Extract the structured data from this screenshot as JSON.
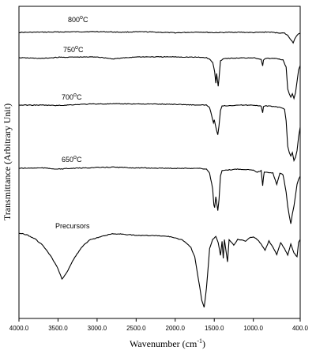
{
  "chart_data": {
    "type": "line",
    "title": "",
    "xlabel_main": "Wavenumber (cm",
    "xlabel_sup": "-1",
    "xlabel_close": ")",
    "ylabel": "Transmittance (Arbitrary Unit)",
    "xlim": [
      4000,
      400
    ],
    "x_reversed": true,
    "grid": false,
    "x_ticks": [
      "4000.0",
      "3500.0",
      "3000.0",
      "2500.0",
      "2000.0",
      "1500.0",
      "1000.0",
      "400.0"
    ],
    "x_tick_values": [
      4000,
      3500,
      3000,
      2500,
      2000,
      1500,
      1000,
      400
    ],
    "series": [
      {
        "name": "800 °C",
        "label_main": "800",
        "label_sup": "o",
        "label_unit": "C",
        "baseline": 41,
        "points": [
          [
            4000,
            0
          ],
          [
            3500,
            0.5
          ],
          [
            3000,
            1
          ],
          [
            2700,
            0.3
          ],
          [
            2400,
            0.8
          ],
          [
            2000,
            -0.5
          ],
          [
            1700,
            0.5
          ],
          [
            1500,
            -0.3
          ],
          [
            1200,
            0.3
          ],
          [
            1000,
            -0.2
          ],
          [
            800,
            0.5
          ],
          [
            700,
            -0.5
          ],
          [
            600,
            -1
          ],
          [
            560,
            -4
          ],
          [
            520,
            -9
          ],
          [
            490,
            -13
          ],
          [
            470,
            -8
          ],
          [
            450,
            -5
          ],
          [
            420,
            -2
          ],
          [
            400,
            -1
          ]
        ]
      },
      {
        "name": "750 °C",
        "label_main": "750",
        "label_sup": "o",
        "label_unit": "C",
        "baseline": 73,
        "points": [
          [
            4000,
            0
          ],
          [
            3700,
            -1
          ],
          [
            3500,
            0.5
          ],
          [
            3000,
            1
          ],
          [
            2800,
            -1.5
          ],
          [
            2500,
            1
          ],
          [
            2000,
            1
          ],
          [
            1700,
            0.5
          ],
          [
            1600,
            0
          ],
          [
            1560,
            -2
          ],
          [
            1520,
            -6
          ],
          [
            1495,
            -18
          ],
          [
            1480,
            -32
          ],
          [
            1470,
            -20
          ],
          [
            1460,
            -28
          ],
          [
            1450,
            -36
          ],
          [
            1440,
            -26
          ],
          [
            1420,
            -4
          ],
          [
            1380,
            -1
          ],
          [
            1200,
            -0.5
          ],
          [
            1000,
            0
          ],
          [
            900,
            -2
          ],
          [
            880,
            -10
          ],
          [
            870,
            -3
          ],
          [
            850,
            -1
          ],
          [
            700,
            -1
          ],
          [
            620,
            -3
          ],
          [
            580,
            -12
          ],
          [
            560,
            -40
          ],
          [
            540,
            -46
          ],
          [
            520,
            -50
          ],
          [
            500,
            -46
          ],
          [
            480,
            -52
          ],
          [
            460,
            -44
          ],
          [
            440,
            -30
          ],
          [
            420,
            -15
          ],
          [
            400,
            -10
          ]
        ]
      },
      {
        "name": "700 °C",
        "label_main": "700",
        "label_sup": "o",
        "label_unit": "C",
        "baseline": 133,
        "points": [
          [
            4000,
            0
          ],
          [
            3700,
            0
          ],
          [
            3500,
            -0.5
          ],
          [
            3200,
            1
          ],
          [
            3000,
            1.5
          ],
          [
            2500,
            1.5
          ],
          [
            2000,
            1
          ],
          [
            1700,
            0
          ],
          [
            1600,
            0
          ],
          [
            1560,
            -3
          ],
          [
            1510,
            -22
          ],
          [
            1500,
            -19
          ],
          [
            1480,
            -28
          ],
          [
            1465,
            -34
          ],
          [
            1455,
            -38
          ],
          [
            1440,
            -26
          ],
          [
            1420,
            -7
          ],
          [
            1400,
            -1
          ],
          [
            1200,
            0
          ],
          [
            1000,
            0
          ],
          [
            900,
            -1
          ],
          [
            880,
            -10
          ],
          [
            870,
            -2
          ],
          [
            850,
            -1
          ],
          [
            700,
            -2
          ],
          [
            600,
            -5
          ],
          [
            580,
            -20
          ],
          [
            560,
            -52
          ],
          [
            540,
            -60
          ],
          [
            520,
            -64
          ],
          [
            500,
            -60
          ],
          [
            480,
            -70
          ],
          [
            460,
            -66
          ],
          [
            440,
            -58
          ],
          [
            420,
            -40
          ],
          [
            400,
            -28
          ]
        ]
      },
      {
        "name": "650 °C",
        "label_main": "650",
        "label_sup": "o",
        "label_unit": "C",
        "baseline": 213,
        "points": [
          [
            4000,
            0
          ],
          [
            3700,
            0.5
          ],
          [
            3500,
            -1
          ],
          [
            3300,
            0
          ],
          [
            3000,
            1
          ],
          [
            2800,
            1.5
          ],
          [
            2500,
            0.5
          ],
          [
            2000,
            0
          ],
          [
            1700,
            0
          ],
          [
            1600,
            -1
          ],
          [
            1560,
            -6
          ],
          [
            1520,
            -26
          ],
          [
            1505,
            -46
          ],
          [
            1495,
            -50
          ],
          [
            1480,
            -36
          ],
          [
            1465,
            -46
          ],
          [
            1455,
            -54
          ],
          [
            1440,
            -40
          ],
          [
            1420,
            -10
          ],
          [
            1400,
            -3
          ],
          [
            1200,
            -1
          ],
          [
            1000,
            -2
          ],
          [
            950,
            -5
          ],
          [
            900,
            -3
          ],
          [
            880,
            -22
          ],
          [
            870,
            -12
          ],
          [
            860,
            -5
          ],
          [
            750,
            -6
          ],
          [
            700,
            -20
          ],
          [
            660,
            -6
          ],
          [
            620,
            -8
          ],
          [
            580,
            -30
          ],
          [
            560,
            -48
          ],
          [
            540,
            -60
          ],
          [
            520,
            -70
          ],
          [
            500,
            -58
          ],
          [
            480,
            -48
          ],
          [
            460,
            -34
          ],
          [
            440,
            -20
          ],
          [
            420,
            -14
          ],
          [
            400,
            -10
          ]
        ]
      },
      {
        "name": "Precursors",
        "label_main": "Precursors",
        "label_sup": "",
        "label_unit": "",
        "baseline": 295,
        "points": [
          [
            4000,
            0
          ],
          [
            3900,
            -2
          ],
          [
            3800,
            -7
          ],
          [
            3700,
            -15
          ],
          [
            3600,
            -28
          ],
          [
            3500,
            -45
          ],
          [
            3450,
            -58
          ],
          [
            3400,
            -52
          ],
          [
            3300,
            -33
          ],
          [
            3200,
            -18
          ],
          [
            3100,
            -9
          ],
          [
            3000,
            -6
          ],
          [
            2900,
            -3
          ],
          [
            2800,
            -1
          ],
          [
            2700,
            -1
          ],
          [
            2600,
            -2
          ],
          [
            2500,
            -3
          ],
          [
            2300,
            -3
          ],
          [
            2100,
            -4
          ],
          [
            2000,
            -6
          ],
          [
            1900,
            -9
          ],
          [
            1800,
            -18
          ],
          [
            1750,
            -30
          ],
          [
            1700,
            -60
          ],
          [
            1660,
            -85
          ],
          [
            1630,
            -94
          ],
          [
            1600,
            -70
          ],
          [
            1560,
            -20
          ],
          [
            1520,
            -8
          ],
          [
            1480,
            -4
          ],
          [
            1450,
            -12
          ],
          [
            1420,
            -28
          ],
          [
            1400,
            -10
          ],
          [
            1385,
            -32
          ],
          [
            1370,
            -8
          ],
          [
            1330,
            -36
          ],
          [
            1310,
            -8
          ],
          [
            1250,
            -15
          ],
          [
            1200,
            -8
          ],
          [
            1100,
            -10
          ],
          [
            1050,
            -6
          ],
          [
            1000,
            -5
          ],
          [
            950,
            -8
          ],
          [
            900,
            -14
          ],
          [
            850,
            -22
          ],
          [
            800,
            -10
          ],
          [
            750,
            -18
          ],
          [
            700,
            -27
          ],
          [
            650,
            -12
          ],
          [
            600,
            -20
          ],
          [
            560,
            -28
          ],
          [
            520,
            -14
          ],
          [
            480,
            -25
          ],
          [
            440,
            -30
          ],
          [
            420,
            -12
          ],
          [
            400,
            -8
          ]
        ]
      }
    ]
  }
}
